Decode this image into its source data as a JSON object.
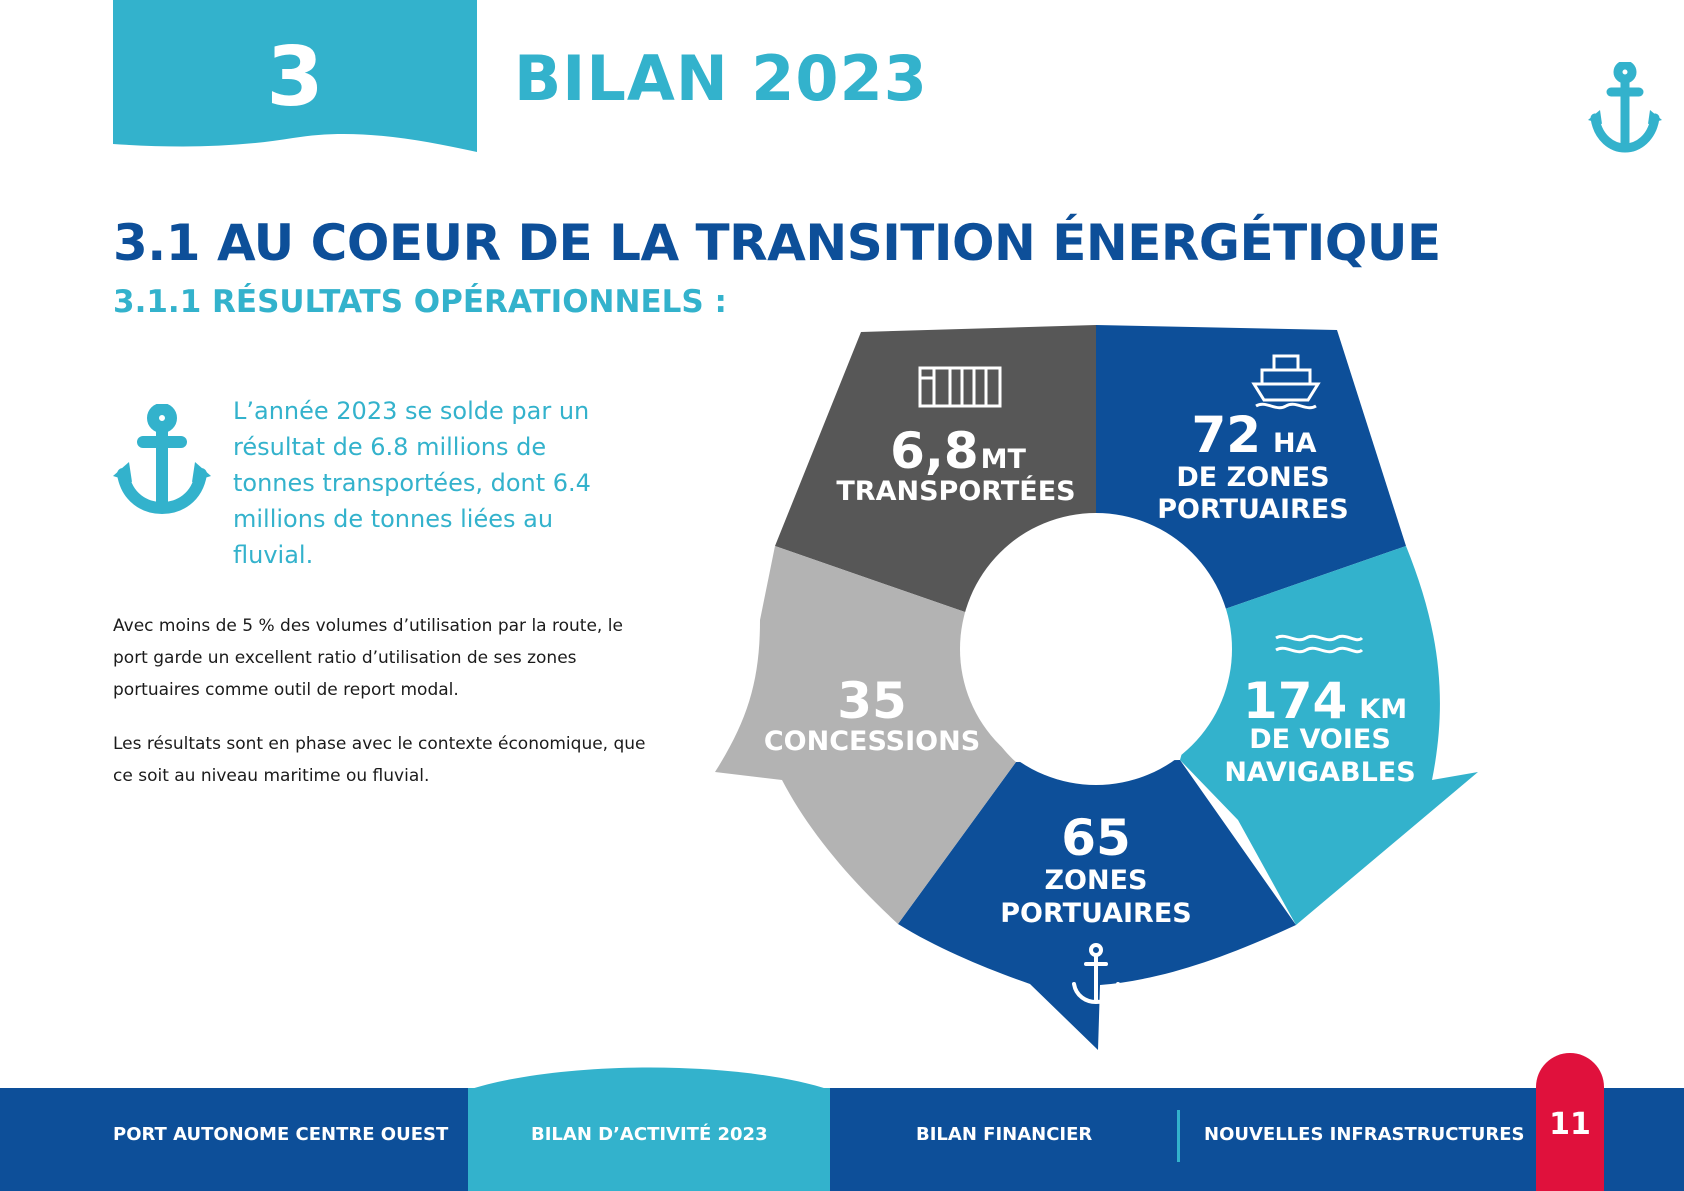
{
  "colors": {
    "teal": "#33b2cc",
    "navy": "#0d4f99",
    "dark_gray": "#575757",
    "light_gray": "#b3b3b3",
    "red": "#e0113c"
  },
  "header": {
    "chapter_number": "3",
    "chapter_title": "BILAN 2023",
    "icon": "anchor-icon"
  },
  "section": {
    "title": "3.1 AU COEUR DE LA TRANSITION ÉNERGÉTIQUE",
    "subtitle": "3.1.1 RÉSULTATS OPÉRATIONNELS :"
  },
  "intro": {
    "highlight": "L’année 2023 se solde par un résultat de 6.8 millions de tonnes transportées, dont 6.4 millions de tonnes liées au fluvial.",
    "paragraph1": "Avec moins de 5 % des volumes d’utilisation par la route, le port garde un excellent ratio d’utilisation de ses zones portuaires comme outil de report modal.",
    "paragraph2": "Les résultats sont en phase avec le contexte économique, que ce soit au niveau maritime ou fluvial."
  },
  "infographic": {
    "segments": [
      {
        "value": "6,8",
        "unit": "MT",
        "line1": "TRANSPORTÉES",
        "line2": "",
        "icon": "container-icon",
        "color": "#575757"
      },
      {
        "value": "72",
        "unit": "HA",
        "line1": "DE ZONES",
        "line2": "PORTUAIRES",
        "icon": "boat-icon",
        "color": "#0d4f99"
      },
      {
        "value": "174",
        "unit": "KM",
        "line1": "DE VOIES",
        "line2": "NAVIGABLES",
        "icon": "waves-icon",
        "color": "#33b2cc"
      },
      {
        "value": "65",
        "unit": "",
        "line1": "ZONES",
        "line2": "PORTUAIRES",
        "icon": "anchor-icon",
        "color": "#0d4f99"
      },
      {
        "value": "35",
        "unit": "",
        "line1": "CONCESSIONS",
        "line2": "",
        "icon": "",
        "color": "#b3b3b3"
      }
    ]
  },
  "footer": {
    "items": [
      "PORT AUTONOME CENTRE OUEST",
      "BILAN  D’ACTIVITÉ 2023",
      "BILAN  FINANCIER",
      "NOUVELLES INFRASTRUCTURES"
    ],
    "active_index": 1,
    "page_number": "11"
  }
}
